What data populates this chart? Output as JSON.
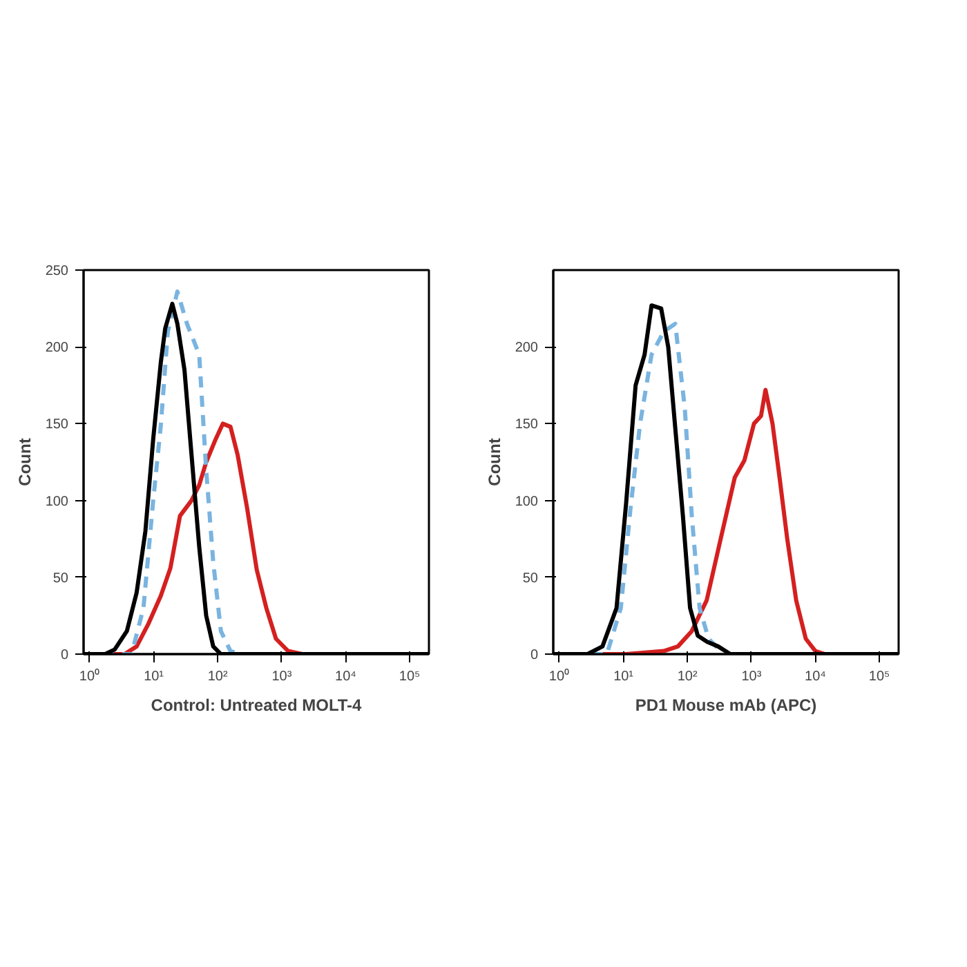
{
  "chart_data": [
    {
      "type": "line",
      "xlabel": "Control: Untreated MOLT-4",
      "ylabel": "Count",
      "log": "x",
      "xlim": [
        0.8,
        200000
      ],
      "ylim": [
        0,
        250
      ],
      "xticks": [
        {
          "value": 1,
          "label": "10⁰"
        },
        {
          "value": 10,
          "label": "10¹"
        },
        {
          "value": 100,
          "label": "10²"
        },
        {
          "value": 1000,
          "label": "10³"
        },
        {
          "value": 10000,
          "label": "10⁴"
        },
        {
          "value": 100000,
          "label": "10⁵"
        }
      ],
      "yticks": [
        0,
        50,
        100,
        150,
        200,
        250
      ],
      "series": [
        {
          "color": "#d42020",
          "line_style": "solid",
          "x": [
            0.8,
            3.5,
            5.4,
            8.3,
            12.9,
            18.2,
            25.7,
            38.9,
            51.3,
            66,
            93,
            120,
            158,
            204,
            288,
            407,
            575,
            813,
            1259,
            2089,
            200000
          ],
          "values": [
            0,
            0,
            5,
            20,
            38,
            56,
            90,
            100,
            110,
            125,
            140,
            150,
            148,
            130,
            95,
            55,
            30,
            10,
            2,
            0,
            0
          ]
        },
        {
          "color": "#7ab4e0",
          "line_style": "dashed",
          "x": [
            0.8,
            4.5,
            6.9,
            9.8,
            12.9,
            16.6,
            23.4,
            33.1,
            51.3,
            66,
            85,
            112,
            158,
            224,
            200000
          ],
          "values": [
            0,
            0,
            30,
            100,
            149,
            210,
            236,
            215,
            195,
            120,
            60,
            15,
            2,
            0,
            0
          ]
        },
        {
          "color": "#000000",
          "line_style": "solid",
          "x": [
            0.8,
            1.74,
            2.45,
            3.8,
            5.4,
            7.4,
            9.8,
            12.9,
            15.1,
            19.5,
            23.4,
            30.2,
            38.9,
            51.3,
            66,
            85,
            112,
            200000
          ],
          "values": [
            0,
            0,
            3,
            15,
            40,
            80,
            140,
            190,
            212,
            228,
            215,
            185,
            130,
            70,
            25,
            5,
            0,
            0
          ]
        }
      ]
    },
    {
      "type": "line",
      "xlabel": "PD1 Mouse mAb (APC)",
      "ylabel": "Count",
      "log": "x",
      "xlim": [
        0.8,
        200000
      ],
      "ylim": [
        0,
        250
      ],
      "xticks": [
        {
          "value": 1,
          "label": "10⁰"
        },
        {
          "value": 10,
          "label": "10¹"
        },
        {
          "value": 100,
          "label": "10²"
        },
        {
          "value": 1000,
          "label": "10³"
        },
        {
          "value": 10000,
          "label": "10⁴"
        },
        {
          "value": 100000,
          "label": "10⁵"
        }
      ],
      "yticks": [
        0,
        50,
        100,
        150,
        200
      ],
      "series": [
        {
          "color": "#d42020",
          "line_style": "solid",
          "x": [
            0.8,
            11.0,
            42.7,
            71,
            117,
            200,
            331,
            550,
            776,
            1096,
            1413,
            1660,
            2138,
            2754,
            3631,
            5012,
            7079,
            10000,
            14125,
            200000
          ],
          "values": [
            0,
            0,
            2,
            5,
            15,
            35,
            75,
            115,
            126,
            150,
            155,
            172,
            150,
            115,
            75,
            35,
            10,
            2,
            0,
            0
          ]
        },
        {
          "color": "#7ab4e0",
          "line_style": "dashed",
          "x": [
            0.8,
            5.5,
            9.1,
            12.9,
            18.2,
            27.5,
            42.7,
            64.6,
            91,
            117,
            155,
            214,
            331,
            468,
            200000
          ],
          "values": [
            0,
            0,
            30,
            95,
            150,
            195,
            210,
            215,
            160,
            90,
            30,
            10,
            2,
            0,
            0
          ]
        },
        {
          "color": "#000000",
          "line_style": "solid",
          "x": [
            0.8,
            2.75,
            4.7,
            7.8,
            11.0,
            15.5,
            21.4,
            27.5,
            38.9,
            50.1,
            64.6,
            85,
            110,
            145,
            204,
            302,
            468,
            200000
          ],
          "values": [
            0,
            0,
            5,
            30,
            98,
            175,
            195,
            227,
            225,
            200,
            147,
            90,
            30,
            12,
            8,
            5,
            0,
            0
          ]
        }
      ]
    }
  ]
}
